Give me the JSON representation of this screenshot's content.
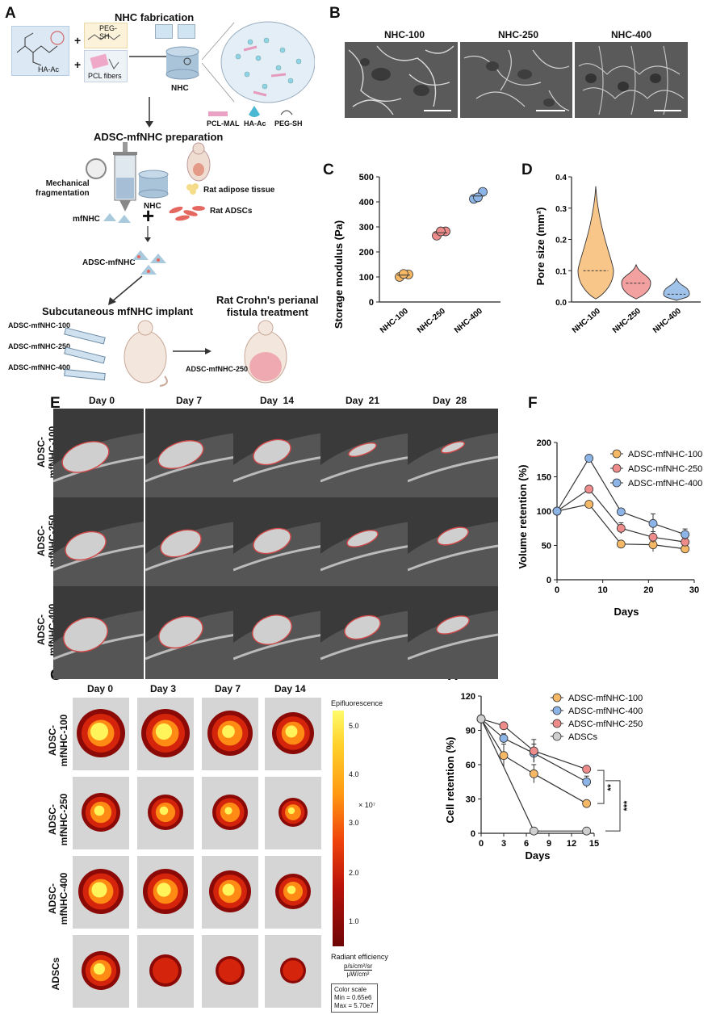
{
  "panels": {
    "A": "A",
    "B": "B",
    "C": "C",
    "D": "D",
    "E": "E",
    "F": "F",
    "G": "G",
    "H": "H"
  },
  "panelA": {
    "title_fab": "NHC fabrication",
    "peg_sh_box": "PEG-SH",
    "ha_ac_box": "HA-Ac",
    "pcl_fibers_box": "PCL fibers",
    "nhc": "NHC",
    "legend_pcl": "PCL-MAL",
    "legend_ha": "HA-Ac",
    "legend_peg": "PEG-SH",
    "title_prep": "ADSC-mfNHC preparation",
    "mech": "Mechanical\nfragmentation",
    "nhc2": "NHC",
    "rat_adipose": "Rat adipose tissue",
    "rat_adscs": "Rat ADSCs",
    "mfnhc": "mfNHC",
    "adsc_mfnhc": "ADSC-mfNHC",
    "title_sub": "Subcutaneous mfNHC implant",
    "title_rat": "Rat Crohn's perianal\nfistula treatment",
    "inj100": "ADSC-mfNHC-100",
    "inj250": "ADSC-mfNHC-250",
    "inj400": "ADSC-mfNHC-400",
    "treat": "ADSC-mfNHC-250"
  },
  "panelB": {
    "labels": [
      "NHC-100",
      "NHC-250",
      "NHC-400"
    ]
  },
  "panelE": {
    "days": [
      "Day 0",
      "Day 7",
      "Day  14",
      "Day  21",
      "Day  28"
    ],
    "rows": [
      "ADSC-\nmfNHC-100",
      "ADSC-\nmfNHC-250",
      "ADSC-\nmfNHC-400"
    ]
  },
  "panelG": {
    "days": [
      "Day 0",
      "Day 3",
      "Day 7",
      "Day 14"
    ],
    "rows": [
      "ADSC-\nmfNHC-100",
      "ADSC-\nmfNHC-250",
      "ADSC-\nmfNHC-400",
      "ADSCs"
    ],
    "colorbar_title": "Epifluorescence",
    "colorbar_ticks": [
      "5.0",
      "4.0",
      "3.0",
      "2.0",
      "1.0"
    ],
    "colorbar_exp": "× 10⁷",
    "radiant": "Radiant efficiency",
    "radiant_units_top": "p/s/cm²/sr",
    "radiant_units_bottom": "μW/cm²",
    "scale_box": [
      "Color scale",
      "Min = 0.65e6",
      "Max = 5.70e7"
    ]
  },
  "chart_data": [
    {
      "id": "C",
      "type": "scatter",
      "ylabel": "Storage modulus (Pa)",
      "xlabel": "",
      "categories": [
        "NHC-100",
        "NHC-250",
        "NHC-400"
      ],
      "ylim": [
        0,
        500
      ],
      "yticks": [
        0,
        100,
        200,
        300,
        400,
        500
      ],
      "points": [
        [
          100,
          110,
          112
        ],
        [
          265,
          282,
          282
        ],
        [
          412,
          440,
          418
        ]
      ],
      "colors": [
        "#f4b866",
        "#ee8c8c",
        "#8cb4e6"
      ]
    },
    {
      "id": "D",
      "type": "violin",
      "ylabel": "Pore size (mm²)",
      "xlabel": "",
      "categories": [
        "NHC-100",
        "NHC-250",
        "NHC-400"
      ],
      "ylim": [
        0,
        0.4
      ],
      "yticks": [
        "0.0",
        "0.1",
        "0.2",
        "0.3",
        "0.4"
      ],
      "ranges": [
        [
          0.01,
          0.37
        ],
        [
          0.01,
          0.12
        ],
        [
          0.005,
          0.075
        ]
      ],
      "medians": [
        0.1,
        0.06,
        0.025
      ],
      "colors": [
        "#f9c68a",
        "#f2a0a0",
        "#9fc3ea"
      ]
    },
    {
      "id": "F",
      "type": "line",
      "ylabel": "Volume retention (%)",
      "xlabel": "Days",
      "x": [
        0,
        7,
        14,
        21,
        28
      ],
      "xlim": [
        0,
        30
      ],
      "xticks": [
        0,
        10,
        20,
        30
      ],
      "ylim": [
        0,
        200
      ],
      "yticks": [
        0,
        50,
        100,
        150,
        200
      ],
      "series": [
        {
          "name": "ADSC-mfNHC-100",
          "values": [
            100,
            110,
            52,
            51,
            45
          ],
          "err": [
            0,
            0,
            0,
            10,
            5
          ],
          "color": "#f4b866"
        },
        {
          "name": "ADSC-mfNHC-250",
          "values": [
            100,
            132,
            75,
            62,
            55
          ],
          "err": [
            0,
            0,
            8,
            8,
            5
          ],
          "color": "#ee8c8c"
        },
        {
          "name": "ADSC-mfNHC-400",
          "values": [
            100,
            177,
            99,
            82,
            66
          ],
          "err": [
            0,
            0,
            5,
            14,
            8
          ],
          "color": "#8cb4e6"
        }
      ]
    },
    {
      "id": "H",
      "type": "line",
      "ylabel": "Cell retention (%)",
      "xlabel": "Days",
      "x": [
        0,
        3,
        7,
        14
      ],
      "xlim": [
        0,
        15
      ],
      "xticks": [
        0,
        3,
        6,
        9,
        12,
        15
      ],
      "ylim": [
        0,
        120
      ],
      "yticks": [
        0,
        30,
        60,
        90,
        120
      ],
      "series": [
        {
          "name": "ADSC-mfNHC-100",
          "values": [
            100,
            68,
            52,
            26
          ],
          "err": [
            0,
            10,
            8,
            0
          ],
          "color": "#f4b866"
        },
        {
          "name": "ADSC-mfNHC-400",
          "values": [
            100,
            83,
            70,
            45
          ],
          "err": [
            0,
            4,
            8,
            5
          ],
          "color": "#8cb4e6"
        },
        {
          "name": "ADSC-mfNHC-250",
          "values": [
            100,
            94,
            72,
            56
          ],
          "err": [
            0,
            0,
            10,
            0
          ],
          "color": "#ee8c8c"
        },
        {
          "name": "ADSCs",
          "x": [
            0,
            7,
            14
          ],
          "values": [
            100,
            2,
            2
          ],
          "err": [
            0,
            0,
            0
          ],
          "color": "#cfcfcf"
        }
      ],
      "sig": [
        "**",
        "***"
      ]
    }
  ]
}
